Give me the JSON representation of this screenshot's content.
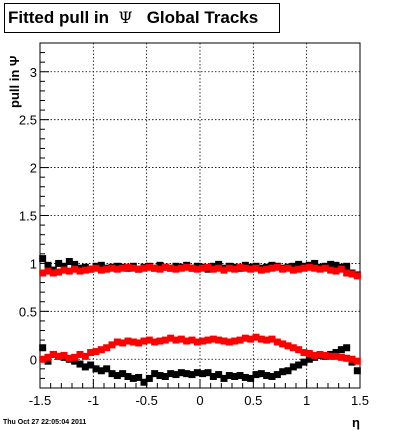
{
  "title": {
    "prefix": "Fitted pull in",
    "symbol": "Ψ",
    "suffix": "Global Tracks"
  },
  "footer": {
    "date": "Thu Oct 27 22:05:04 2011"
  },
  "chart_data": {
    "type": "scatter",
    "xlabel": "η",
    "ylabel": "pull in Ψ",
    "xlim": [
      -1.5,
      1.5
    ],
    "ylim": [
      -0.3,
      3.3
    ],
    "x_ticks": [
      "-1.5",
      "-1",
      "-0.5",
      "0",
      "0.5",
      "1",
      "1.5"
    ],
    "y_ticks": [
      "0",
      "0.5",
      "1",
      "1.5",
      "2",
      "2.5",
      "3"
    ],
    "grid": true,
    "colors": {
      "black": "#000000",
      "red": "#ff0000"
    },
    "x": [
      -1.475,
      -1.425,
      -1.375,
      -1.325,
      -1.275,
      -1.225,
      -1.175,
      -1.125,
      -1.075,
      -1.025,
      -0.975,
      -0.925,
      -0.875,
      -0.825,
      -0.775,
      -0.725,
      -0.675,
      -0.625,
      -0.575,
      -0.525,
      -0.475,
      -0.425,
      -0.375,
      -0.325,
      -0.275,
      -0.225,
      -0.175,
      -0.125,
      -0.075,
      -0.025,
      0.025,
      0.075,
      0.125,
      0.175,
      0.225,
      0.275,
      0.325,
      0.375,
      0.425,
      0.475,
      0.525,
      0.575,
      0.625,
      0.675,
      0.725,
      0.775,
      0.825,
      0.875,
      0.925,
      0.975,
      1.025,
      1.075,
      1.125,
      1.175,
      1.225,
      1.275,
      1.325,
      1.375,
      1.425,
      1.475
    ],
    "series": [
      {
        "color": "black",
        "values": [
          1.05,
          0.98,
          0.93,
          1.0,
          0.97,
          1.02,
          0.99,
          0.95,
          0.96,
          0.94,
          0.97,
          0.98,
          0.95,
          0.96,
          0.97,
          0.96,
          0.95,
          0.97,
          0.94,
          0.96,
          0.97,
          0.95,
          0.98,
          0.96,
          0.95,
          0.97,
          0.96,
          0.98,
          0.95,
          0.97,
          0.96,
          0.94,
          0.97,
          0.99,
          0.95,
          0.97,
          0.96,
          0.95,
          0.98,
          0.96,
          0.97,
          0.95,
          0.96,
          0.98,
          0.97,
          0.95,
          0.96,
          0.97,
          0.99,
          0.97,
          0.98,
          1.0,
          0.96,
          0.97,
          0.99,
          0.98,
          0.96,
          0.97,
          0.9,
          0.88
        ]
      },
      {
        "color": "black",
        "values": [
          0.12,
          -0.02,
          0.05,
          0.03,
          0.02,
          0.0,
          -0.02,
          -0.05,
          -0.08,
          -0.06,
          -0.1,
          -0.12,
          -0.1,
          -0.15,
          -0.17,
          -0.15,
          -0.18,
          -0.2,
          -0.19,
          -0.24,
          -0.2,
          -0.15,
          -0.17,
          -0.18,
          -0.15,
          -0.16,
          -0.14,
          -0.15,
          -0.16,
          -0.14,
          -0.15,
          -0.14,
          -0.18,
          -0.16,
          -0.2,
          -0.17,
          -0.18,
          -0.17,
          -0.19,
          -0.2,
          -0.16,
          -0.15,
          -0.17,
          -0.18,
          -0.16,
          -0.13,
          -0.12,
          -0.08,
          -0.06,
          -0.03,
          0.0,
          0.02,
          0.04,
          0.03,
          0.05,
          0.07,
          0.1,
          0.12,
          -0.03,
          -0.12
        ]
      },
      {
        "color": "red",
        "values": [
          0.9,
          0.92,
          0.9,
          0.91,
          0.93,
          0.92,
          0.94,
          0.92,
          0.93,
          0.94,
          0.95,
          0.93,
          0.94,
          0.95,
          0.94,
          0.95,
          0.96,
          0.95,
          0.94,
          0.95,
          0.96,
          0.95,
          0.94,
          0.96,
          0.95,
          0.94,
          0.95,
          0.96,
          0.95,
          0.94,
          0.95,
          0.96,
          0.94,
          0.95,
          0.93,
          0.95,
          0.94,
          0.96,
          0.95,
          0.94,
          0.95,
          0.93,
          0.94,
          0.95,
          0.96,
          0.94,
          0.95,
          0.93,
          0.94,
          0.95,
          0.96,
          0.95,
          0.94,
          0.95,
          0.93,
          0.92,
          0.94,
          0.9,
          0.89,
          0.87
        ]
      },
      {
        "color": "red",
        "values": [
          0.0,
          0.02,
          0.05,
          0.03,
          0.04,
          0.01,
          0.02,
          0.05,
          0.03,
          0.07,
          0.08,
          0.1,
          0.12,
          0.15,
          0.18,
          0.17,
          0.19,
          0.18,
          0.17,
          0.19,
          0.2,
          0.18,
          0.19,
          0.2,
          0.22,
          0.2,
          0.21,
          0.19,
          0.2,
          0.18,
          0.19,
          0.2,
          0.21,
          0.2,
          0.19,
          0.18,
          0.19,
          0.2,
          0.22,
          0.21,
          0.23,
          0.21,
          0.2,
          0.21,
          0.18,
          0.16,
          0.14,
          0.12,
          0.1,
          0.07,
          0.06,
          0.04,
          0.05,
          0.04,
          0.03,
          0.03,
          0.02,
          0.01,
          0.0,
          -0.02
        ]
      }
    ]
  }
}
